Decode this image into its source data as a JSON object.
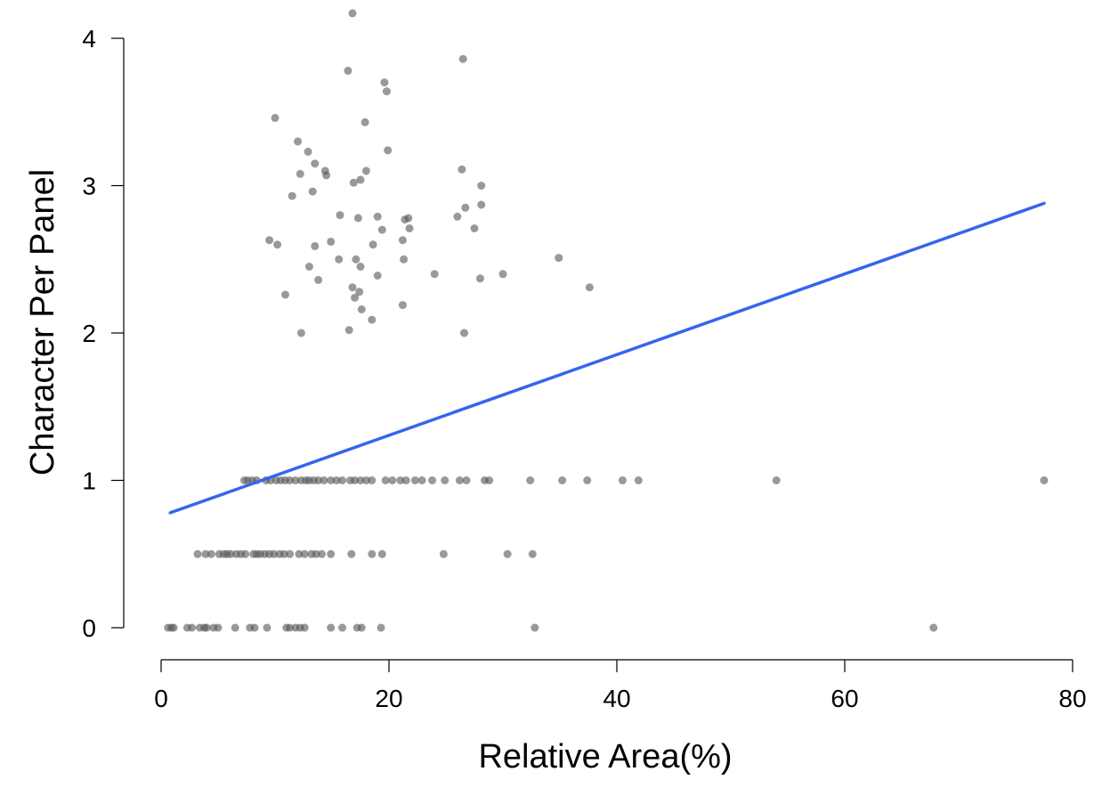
{
  "chart_data": {
    "type": "scatter",
    "title": "",
    "xlabel": "Relative Area(%)",
    "ylabel": "Character Per Panel",
    "xlim": [
      0,
      80
    ],
    "ylim": [
      0,
      4
    ],
    "xticks": [
      0,
      20,
      40,
      60,
      80
    ],
    "yticks": [
      0,
      1,
      2,
      3,
      4
    ],
    "xtick_labels": [
      "0",
      "20",
      "40",
      "60",
      "80"
    ],
    "ytick_labels": [
      "0",
      "1",
      "2",
      "3",
      "4"
    ],
    "grid": false,
    "point_color": "#555555",
    "line_color": "#3366ee",
    "points": [
      [
        0.6,
        0
      ],
      [
        0.9,
        0
      ],
      [
        1.1,
        0
      ],
      [
        2.3,
        0
      ],
      [
        2.7,
        0
      ],
      [
        3.4,
        0
      ],
      [
        3.8,
        0
      ],
      [
        4.0,
        0
      ],
      [
        4.6,
        0
      ],
      [
        5.0,
        0
      ],
      [
        6.5,
        0
      ],
      [
        7.8,
        0
      ],
      [
        8.2,
        0
      ],
      [
        9.3,
        0
      ],
      [
        11.0,
        0
      ],
      [
        11.3,
        0
      ],
      [
        11.8,
        0
      ],
      [
        12.2,
        0
      ],
      [
        12.6,
        0
      ],
      [
        14.9,
        0
      ],
      [
        15.9,
        0
      ],
      [
        17.2,
        0
      ],
      [
        17.6,
        0
      ],
      [
        19.3,
        0
      ],
      [
        32.8,
        0
      ],
      [
        67.8,
        0
      ],
      [
        3.2,
        0.5
      ],
      [
        3.9,
        0.5
      ],
      [
        4.4,
        0.5
      ],
      [
        5.1,
        0.5
      ],
      [
        5.5,
        0.5
      ],
      [
        5.8,
        0.5
      ],
      [
        6.1,
        0.5
      ],
      [
        6.6,
        0.5
      ],
      [
        7.0,
        0.5
      ],
      [
        7.4,
        0.5
      ],
      [
        8.1,
        0.5
      ],
      [
        8.4,
        0.5
      ],
      [
        8.7,
        0.5
      ],
      [
        9.1,
        0.5
      ],
      [
        9.5,
        0.5
      ],
      [
        9.9,
        0.5
      ],
      [
        10.4,
        0.5
      ],
      [
        10.8,
        0.5
      ],
      [
        11.3,
        0.5
      ],
      [
        12.1,
        0.5
      ],
      [
        12.6,
        0.5
      ],
      [
        13.2,
        0.5
      ],
      [
        13.6,
        0.5
      ],
      [
        14.1,
        0.5
      ],
      [
        14.9,
        0.5
      ],
      [
        16.7,
        0.5
      ],
      [
        18.5,
        0.5
      ],
      [
        19.4,
        0.5
      ],
      [
        24.8,
        0.5
      ],
      [
        30.4,
        0.5
      ],
      [
        32.6,
        0.5
      ],
      [
        7.3,
        1
      ],
      [
        7.6,
        1
      ],
      [
        8.0,
        1
      ],
      [
        8.4,
        1
      ],
      [
        9.2,
        1
      ],
      [
        9.6,
        1
      ],
      [
        10.1,
        1
      ],
      [
        10.5,
        1
      ],
      [
        10.9,
        1
      ],
      [
        11.3,
        1
      ],
      [
        11.8,
        1
      ],
      [
        12.3,
        1
      ],
      [
        12.7,
        1
      ],
      [
        13.0,
        1
      ],
      [
        13.4,
        1
      ],
      [
        13.8,
        1
      ],
      [
        14.3,
        1
      ],
      [
        14.9,
        1
      ],
      [
        15.4,
        1
      ],
      [
        15.9,
        1
      ],
      [
        16.6,
        1
      ],
      [
        17.0,
        1
      ],
      [
        17.5,
        1
      ],
      [
        18.0,
        1
      ],
      [
        18.5,
        1
      ],
      [
        19.7,
        1
      ],
      [
        20.3,
        1
      ],
      [
        21.0,
        1
      ],
      [
        21.5,
        1
      ],
      [
        22.3,
        1
      ],
      [
        22.9,
        1
      ],
      [
        23.8,
        1
      ],
      [
        24.9,
        1
      ],
      [
        26.2,
        1
      ],
      [
        26.8,
        1
      ],
      [
        28.4,
        1
      ],
      [
        28.8,
        1
      ],
      [
        32.4,
        1
      ],
      [
        35.2,
        1
      ],
      [
        37.4,
        1
      ],
      [
        40.5,
        1
      ],
      [
        41.9,
        1
      ],
      [
        54.0,
        1
      ],
      [
        77.5,
        1
      ],
      [
        12.3,
        2.0
      ],
      [
        16.5,
        2.02
      ],
      [
        18.5,
        2.09
      ],
      [
        17.6,
        2.16
      ],
      [
        21.2,
        2.19
      ],
      [
        17.0,
        2.24
      ],
      [
        17.4,
        2.28
      ],
      [
        16.8,
        2.31
      ],
      [
        37.6,
        2.31
      ],
      [
        10.9,
        2.26
      ],
      [
        28.0,
        2.37
      ],
      [
        13.8,
        2.36
      ],
      [
        19.0,
        2.39
      ],
      [
        24.0,
        2.4
      ],
      [
        30.0,
        2.4
      ],
      [
        17.5,
        2.45
      ],
      [
        13.0,
        2.45
      ],
      [
        15.6,
        2.5
      ],
      [
        17.1,
        2.5
      ],
      [
        21.3,
        2.5
      ],
      [
        34.9,
        2.51
      ],
      [
        26.6,
        2.0
      ],
      [
        18.6,
        2.6
      ],
      [
        10.2,
        2.6
      ],
      [
        13.5,
        2.59
      ],
      [
        14.9,
        2.62
      ],
      [
        9.5,
        2.63
      ],
      [
        21.2,
        2.63
      ],
      [
        19.4,
        2.7
      ],
      [
        21.8,
        2.71
      ],
      [
        27.5,
        2.71
      ],
      [
        17.3,
        2.78
      ],
      [
        19.0,
        2.79
      ],
      [
        15.7,
        2.8
      ],
      [
        26.0,
        2.79
      ],
      [
        21.4,
        2.77
      ],
      [
        21.7,
        2.78
      ],
      [
        28.1,
        2.87
      ],
      [
        26.7,
        2.85
      ],
      [
        11.5,
        2.93
      ],
      [
        13.3,
        2.96
      ],
      [
        16.9,
        3.02
      ],
      [
        17.5,
        3.04
      ],
      [
        28.1,
        3.0
      ],
      [
        12.2,
        3.08
      ],
      [
        14.5,
        3.07
      ],
      [
        14.4,
        3.1
      ],
      [
        18.0,
        3.1
      ],
      [
        26.4,
        3.11
      ],
      [
        13.5,
        3.15
      ],
      [
        12.9,
        3.23
      ],
      [
        19.9,
        3.24
      ],
      [
        12.0,
        3.3
      ],
      [
        10.0,
        3.46
      ],
      [
        17.9,
        3.43
      ],
      [
        19.8,
        3.64
      ],
      [
        19.6,
        3.7
      ],
      [
        16.4,
        3.78
      ],
      [
        26.5,
        3.86
      ],
      [
        16.8,
        4.17
      ]
    ],
    "fit_line": {
      "x": [
        0.8,
        77.5
      ],
      "y": [
        0.78,
        2.88
      ]
    }
  }
}
